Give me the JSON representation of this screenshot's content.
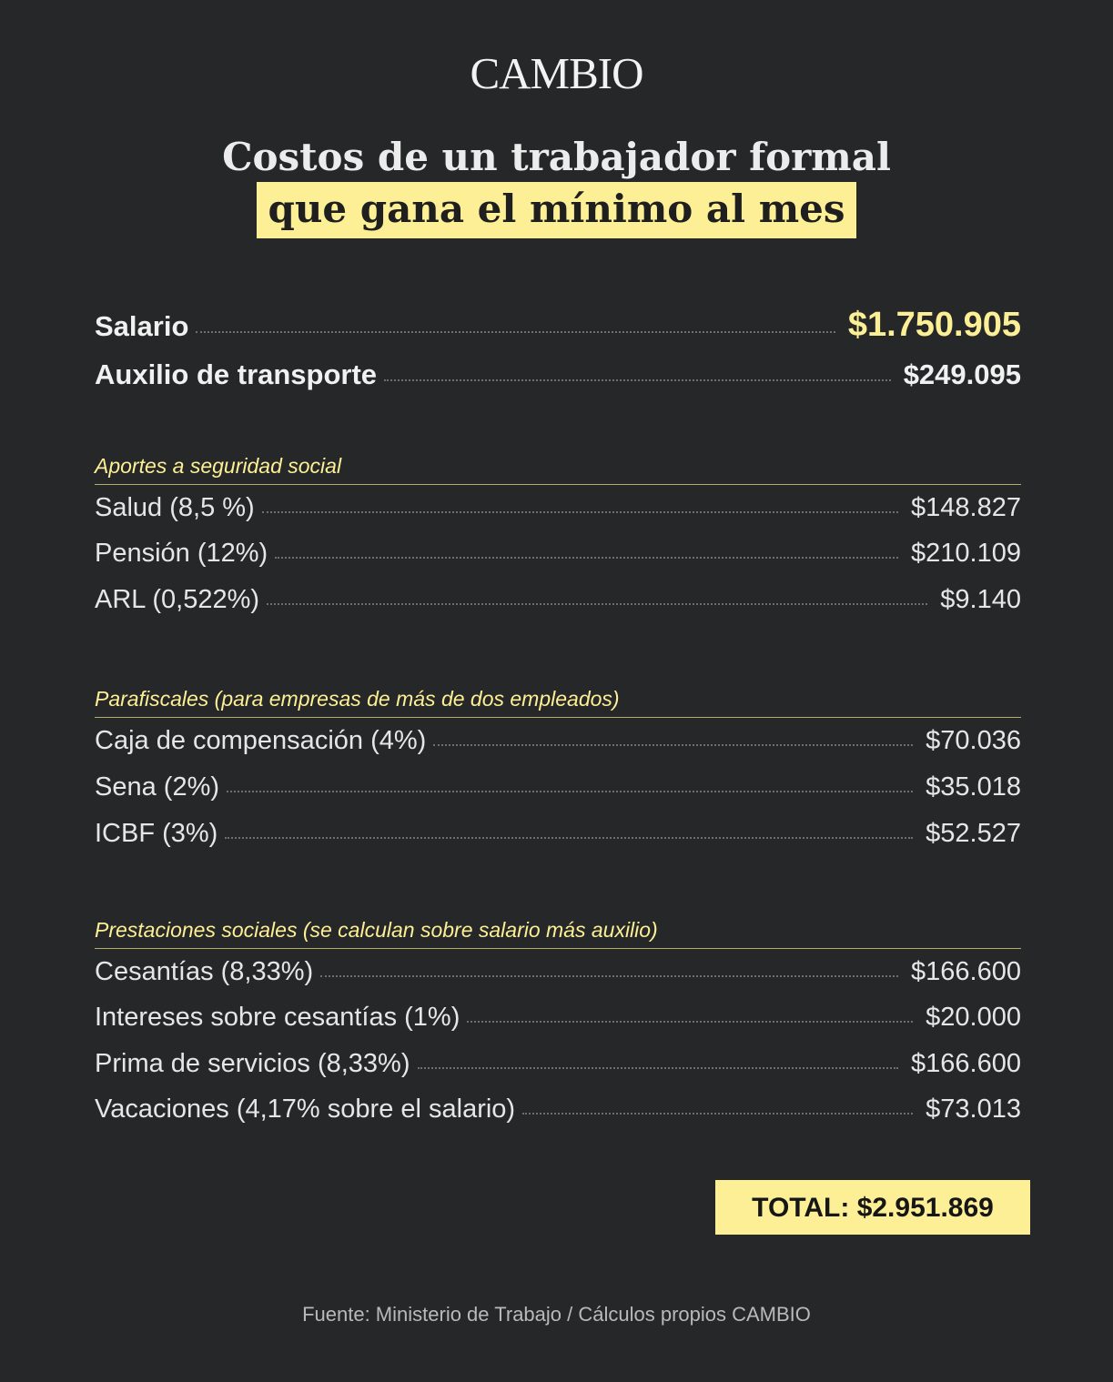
{
  "logo": "CAMBIO",
  "title_line1": "Costos de un trabajador formal",
  "title_line2": "que gana el mínimo al mes",
  "main": [
    {
      "label": "Salario",
      "value": "$1.750.905"
    },
    {
      "label": "Auxilio de transporte",
      "value": "$249.095"
    }
  ],
  "sections": [
    {
      "heading": "Aportes a seguridad social",
      "items": [
        {
          "label": "Salud (8,5 %)",
          "value": "$148.827"
        },
        {
          "label": "Pensión (12%)",
          "value": "$210.109"
        },
        {
          "label": "ARL (0,522%)",
          "value": "$9.140"
        }
      ]
    },
    {
      "heading": "Parafiscales (para empresas de más de dos empleados)",
      "items": [
        {
          "label": "Caja de compensación (4%)",
          "value": "$70.036"
        },
        {
          "label": "Sena (2%)",
          "value": "$35.018"
        },
        {
          "label": "ICBF (3%)",
          "value": "$52.527"
        }
      ]
    },
    {
      "heading": "Prestaciones sociales (se calculan sobre salario más auxilio)",
      "items": [
        {
          "label": "Cesantías (8,33%)",
          "value": "$166.600"
        },
        {
          "label": "Intereses sobre cesantías (1%)",
          "value": "$20.000"
        },
        {
          "label": "Prima de servicios (8,33%)",
          "value": "$166.600"
        },
        {
          "label": "Vacaciones (4,17% sobre el salario)",
          "value": "$73.013"
        }
      ]
    }
  ],
  "total": "TOTAL: $2.951.869",
  "source": "Fuente: Ministerio de Trabajo / Cálculos propios CAMBIO",
  "colors": {
    "background": "#262728",
    "accent": "#fcef95",
    "text": "#ececec"
  }
}
